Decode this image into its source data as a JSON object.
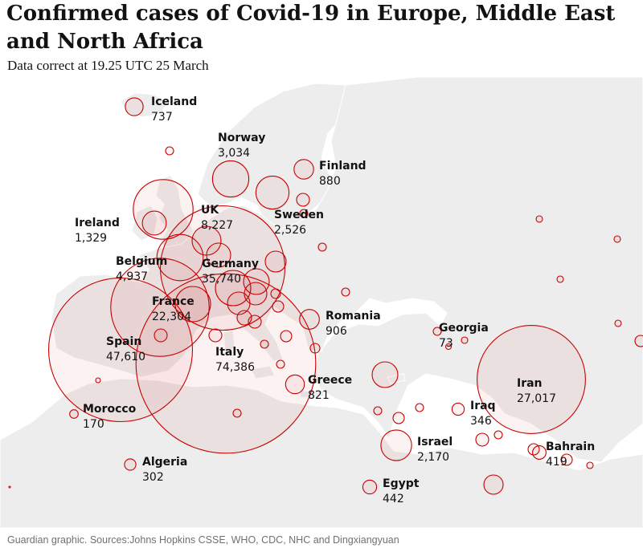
{
  "title": "Confirmed cases of Covid-19 in Europe, Middle East and North Africa",
  "subtitle": "Data correct at 19.25 UTC 25 March",
  "source": "Guardian graphic. Sources:Johns Hopkins CSSE, WHO, CDC, NHC and Dingxiangyuan",
  "colors": {
    "bubble_stroke": "#c70000",
    "land": "#ededed",
    "sea": "#ffffff"
  },
  "labelled_countries": [
    {
      "name": "Iceland",
      "cases": "737"
    },
    {
      "name": "Norway",
      "cases": "3,034"
    },
    {
      "name": "Finland",
      "cases": "880"
    },
    {
      "name": "Ireland",
      "cases": "1,329"
    },
    {
      "name": "UK",
      "cases": "8,227"
    },
    {
      "name": "Sweden",
      "cases": "2,526"
    },
    {
      "name": "Belgium",
      "cases": "4,937"
    },
    {
      "name": "Germany",
      "cases": "35,740"
    },
    {
      "name": "France",
      "cases": "22,304"
    },
    {
      "name": "Romania",
      "cases": "906"
    },
    {
      "name": "Georgia",
      "cases": "73"
    },
    {
      "name": "Spain",
      "cases": "47,610"
    },
    {
      "name": "Italy",
      "cases": "74,386"
    },
    {
      "name": "Greece",
      "cases": "821"
    },
    {
      "name": "Iran",
      "cases": "27,017"
    },
    {
      "name": "Morocco",
      "cases": "170"
    },
    {
      "name": "Iraq",
      "cases": "346"
    },
    {
      "name": "Israel",
      "cases": "2,170"
    },
    {
      "name": "Bahrain",
      "cases": "419"
    },
    {
      "name": "Algeria",
      "cases": "302"
    },
    {
      "name": "Egypt",
      "cases": "442"
    }
  ]
}
